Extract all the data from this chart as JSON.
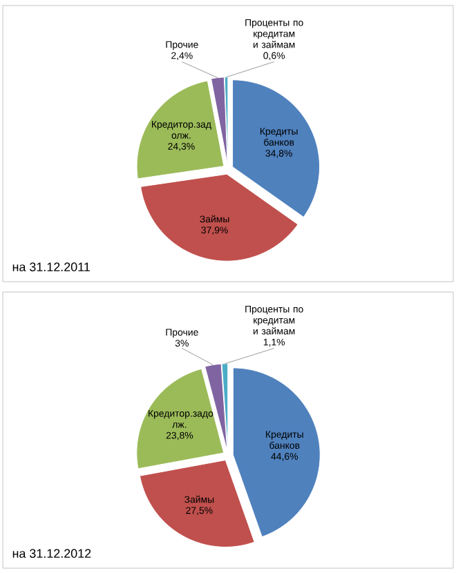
{
  "chart_data": [
    {
      "type": "pie",
      "categories": [
        "Кредиты банков",
        "Займы",
        "Кредитор.зад олж.",
        "Прочие",
        "Проценты по кредитам и займам"
      ],
      "values": [
        34.8,
        37.9,
        24.3,
        2.4,
        0.6
      ],
      "value_labels": [
        "34,8%",
        "37,9%",
        "24,3%",
        "2,4%",
        "0,6%"
      ],
      "colors": [
        "#4f81bd",
        "#c0504d",
        "#9bbb59",
        "#8064a2",
        "#4bacc6"
      ],
      "annotations": [
        "на 31.12.2011"
      ]
    },
    {
      "type": "pie",
      "categories": [
        "Кредиты банков",
        "Займы",
        "Кредитор.задо лж.",
        "Прочие",
        "Проценты по кредитам и займам"
      ],
      "values": [
        44.6,
        27.5,
        23.8,
        3,
        1.1
      ],
      "value_labels": [
        "44,6%",
        "27,5%",
        "23,8%",
        "3%",
        "1,1%"
      ],
      "colors": [
        "#4f81bd",
        "#c0504d",
        "#9bbb59",
        "#8064a2",
        "#4bacc6"
      ],
      "annotations": [
        "на 31.12.2012"
      ]
    }
  ]
}
